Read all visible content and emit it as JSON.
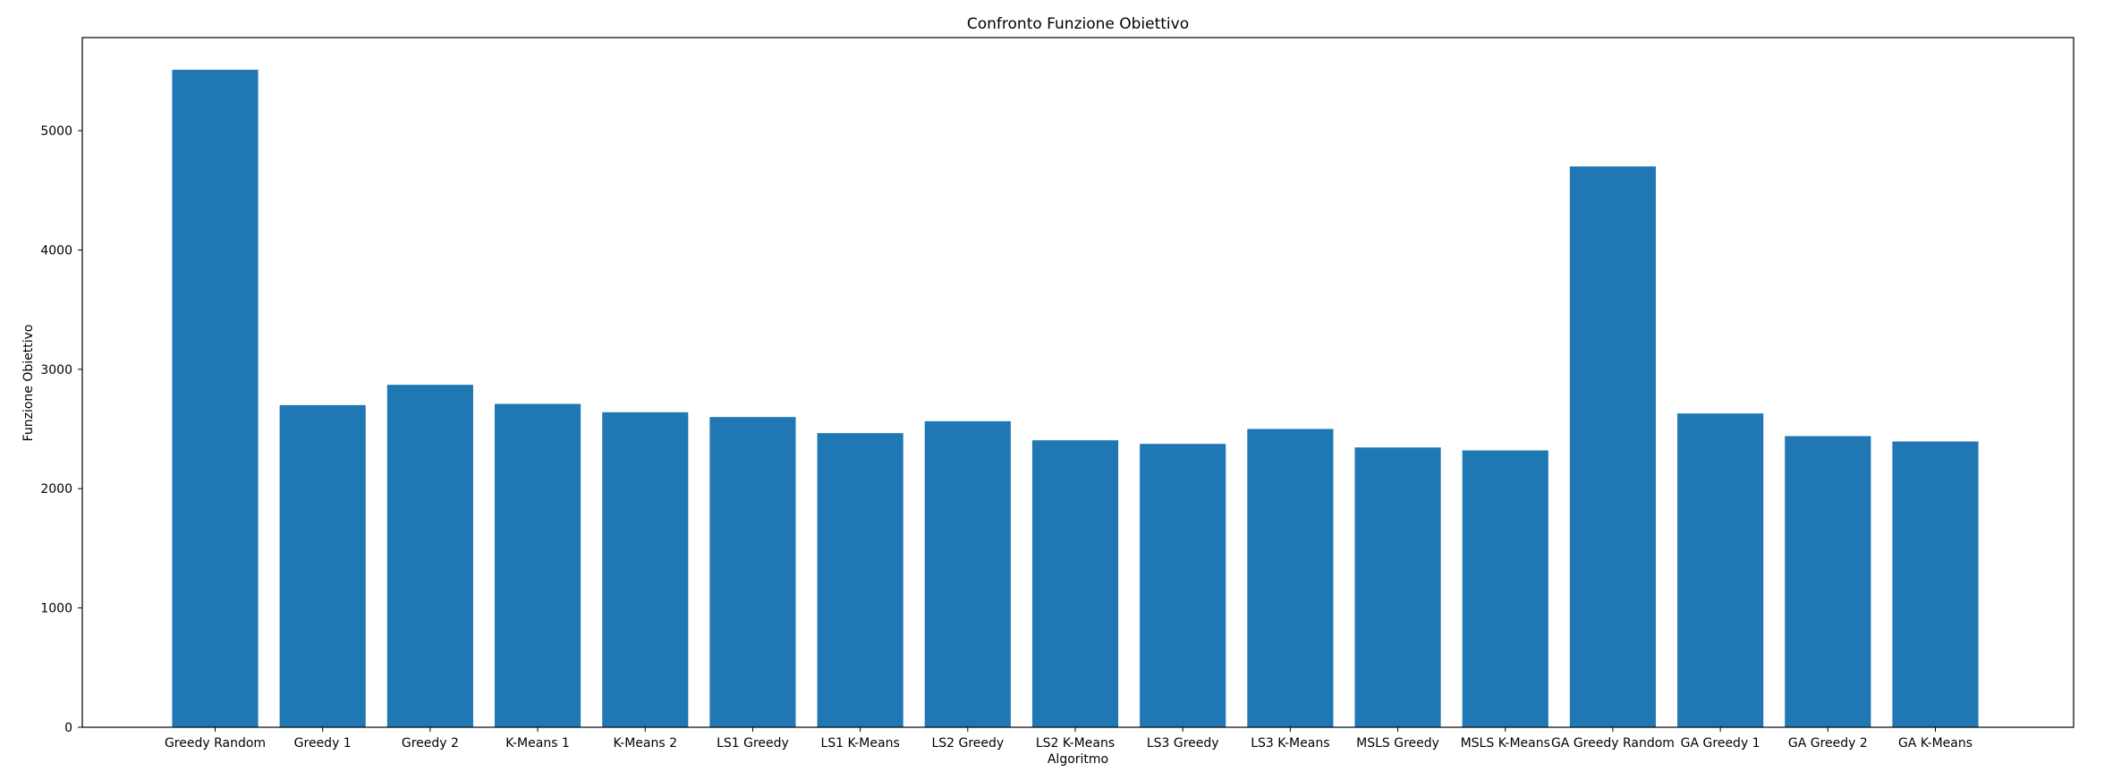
{
  "chart_data": {
    "type": "bar",
    "title": "Confronto Funzione Obiettivo",
    "xlabel": "Algoritmo",
    "ylabel": "Funzione Obiettivo",
    "categories": [
      "Greedy Random",
      "Greedy 1",
      "Greedy 2",
      "K-Means 1",
      "K-Means 2",
      "LS1 Greedy",
      "LS1 K-Means",
      "LS2 Greedy",
      "LS2 K-Means",
      "LS3 Greedy",
      "LS3 K-Means",
      "MSLS Greedy",
      "MSLS K-Means",
      "GA Greedy Random",
      "GA Greedy 1",
      "GA Greedy 2",
      "GA K-Means"
    ],
    "values": [
      5510,
      2700,
      2870,
      2710,
      2640,
      2600,
      2465,
      2565,
      2405,
      2375,
      2500,
      2345,
      2320,
      4700,
      2630,
      2440,
      2395
    ],
    "ylim": [
      0,
      5780
    ],
    "yticks": [
      0,
      1000,
      2000,
      3000,
      4000,
      5000
    ],
    "grid": false,
    "color": "#1f77b4"
  }
}
